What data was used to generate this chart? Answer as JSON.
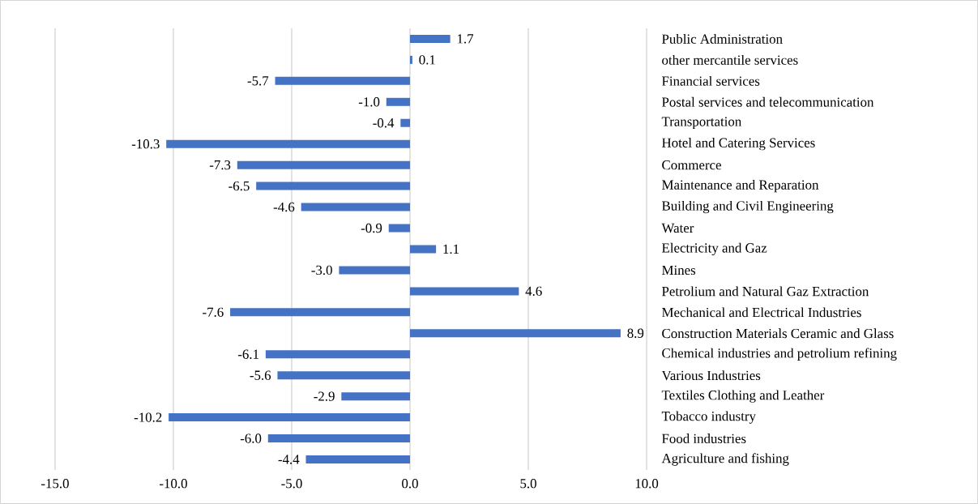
{
  "chart_data": {
    "type": "bar",
    "orientation": "horizontal",
    "categories": [
      "Public Administration",
      "other mercantile services",
      "Financial services",
      "Postal services and telecommunication",
      "Transportation",
      "Hotel and Catering Services",
      "Commerce",
      "Maintenance and Reparation",
      "Building and Civil Engineering",
      "Water",
      "Electricity and Gaz",
      "Mines",
      "Petrolium and Natural Gaz Extraction",
      "Mechanical and Electrical Industries",
      "Construction Materials Ceramic and Glass",
      "Chemical industries and petrolium refining",
      "Various Industries",
      "Textiles Clothing and Leather",
      "Tobacco industry",
      "Food industries",
      "Agriculture and fishing"
    ],
    "values": [
      1.7,
      0.1,
      -5.7,
      -1.0,
      -0.4,
      -10.3,
      -7.3,
      -6.5,
      -4.6,
      -0.9,
      1.1,
      -3.0,
      4.6,
      -7.6,
      8.9,
      -6.1,
      -5.6,
      -2.9,
      -10.2,
      -6.0,
      -4.4
    ],
    "value_labels": [
      "1.7",
      "0.1",
      "-5.7",
      "-1.0",
      "-0.4",
      "-10.3",
      "-7.3",
      "-6.5",
      "-4.6",
      "-0.9",
      "1.1",
      "-3.0",
      "4.6",
      "-7.6",
      "8.9",
      "-6.1",
      "-5.6",
      "-2.9",
      "-10.2",
      "-6.0",
      "-4.4"
    ],
    "color": "#4472c4",
    "xlim": [
      -15,
      10
    ],
    "xticks": [
      {
        "value": -15,
        "label": "-15.0"
      },
      {
        "value": -10,
        "label": "-10.0"
      },
      {
        "value": -5,
        "label": "-5.0"
      },
      {
        "value": 0,
        "label": "0.0"
      },
      {
        "value": 5,
        "label": "5.0"
      },
      {
        "value": 10,
        "label": "10.0"
      }
    ],
    "grid": "x"
  }
}
